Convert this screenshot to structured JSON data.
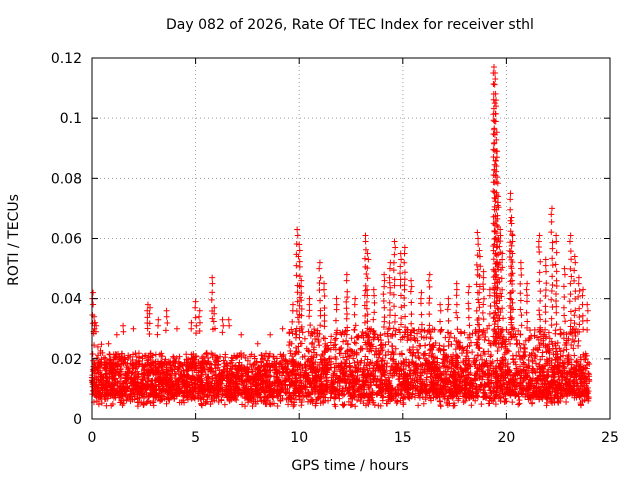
{
  "chart_data": {
    "type": "scatter",
    "title": "Day 082 of 2026, Rate Of TEC Index for receiver sthl",
    "xlabel": "GPS time / hours",
    "ylabel": "ROTI / TECUs",
    "xlim": [
      0,
      25
    ],
    "ylim": [
      0,
      0.12
    ],
    "xticks": [
      0,
      5,
      10,
      15,
      20,
      25
    ],
    "yticks": [
      0,
      0.02,
      0.04,
      0.06,
      0.08,
      0.1,
      0.12
    ],
    "xtick_labels": [
      "0",
      "5",
      "10",
      "15",
      "20",
      "25"
    ],
    "ytick_labels": [
      "0",
      "0.02",
      "0.04",
      "0.06",
      "0.08",
      "0.1",
      "0.12"
    ],
    "grid": true,
    "marker": "+",
    "color": "#ff0000",
    "series": [
      {
        "name": "ROTI",
        "description_points": "dense band of points 0.003-0.03 across 0-24 h; representative sampled points listed",
        "points": [
          [
            0.05,
            0.042
          ],
          [
            0.1,
            0.034
          ],
          [
            0.15,
            0.032
          ],
          [
            0.2,
            0.031
          ],
          [
            0.5,
            0.022
          ],
          [
            0.8,
            0.025
          ],
          [
            1.2,
            0.028
          ],
          [
            1.5,
            0.031
          ],
          [
            2.0,
            0.03
          ],
          [
            2.7,
            0.038
          ],
          [
            2.8,
            0.037
          ],
          [
            3.2,
            0.033
          ],
          [
            3.6,
            0.036
          ],
          [
            4.1,
            0.03
          ],
          [
            4.8,
            0.032
          ],
          [
            5.0,
            0.039
          ],
          [
            5.2,
            0.036
          ],
          [
            5.8,
            0.047
          ],
          [
            5.9,
            0.037
          ],
          [
            6.3,
            0.033
          ],
          [
            6.6,
            0.033
          ],
          [
            7.2,
            0.028
          ],
          [
            8.0,
            0.025
          ],
          [
            8.6,
            0.028
          ],
          [
            9.2,
            0.03
          ],
          [
            9.7,
            0.038
          ],
          [
            9.9,
            0.063
          ],
          [
            10.0,
            0.058
          ],
          [
            10.1,
            0.046
          ],
          [
            10.5,
            0.04
          ],
          [
            11.0,
            0.052
          ],
          [
            11.2,
            0.045
          ],
          [
            11.8,
            0.04
          ],
          [
            12.3,
            0.048
          ],
          [
            12.7,
            0.04
          ],
          [
            13.2,
            0.061
          ],
          [
            13.3,
            0.055
          ],
          [
            13.6,
            0.043
          ],
          [
            14.1,
            0.048
          ],
          [
            14.4,
            0.052
          ],
          [
            14.6,
            0.059
          ],
          [
            14.9,
            0.055
          ],
          [
            15.1,
            0.057
          ],
          [
            15.4,
            0.046
          ],
          [
            15.9,
            0.042
          ],
          [
            16.3,
            0.048
          ],
          [
            16.8,
            0.038
          ],
          [
            17.2,
            0.04
          ],
          [
            17.6,
            0.045
          ],
          [
            18.2,
            0.044
          ],
          [
            18.6,
            0.062
          ],
          [
            18.7,
            0.056
          ],
          [
            18.9,
            0.049
          ],
          [
            19.2,
            0.043
          ],
          [
            19.4,
            0.117
          ],
          [
            19.45,
            0.115
          ],
          [
            19.5,
            0.106
          ],
          [
            19.55,
            0.089
          ],
          [
            19.6,
            0.074
          ],
          [
            19.7,
            0.063
          ],
          [
            19.8,
            0.055
          ],
          [
            20.2,
            0.075
          ],
          [
            20.25,
            0.067
          ],
          [
            20.3,
            0.061
          ],
          [
            20.7,
            0.052
          ],
          [
            21.0,
            0.045
          ],
          [
            21.6,
            0.061
          ],
          [
            21.9,
            0.053
          ],
          [
            22.2,
            0.07
          ],
          [
            22.4,
            0.061
          ],
          [
            22.8,
            0.05
          ],
          [
            23.1,
            0.061
          ],
          [
            23.3,
            0.054
          ],
          [
            23.5,
            0.047
          ],
          [
            23.7,
            0.043
          ],
          [
            23.9,
            0.038
          ]
        ]
      }
    ]
  }
}
